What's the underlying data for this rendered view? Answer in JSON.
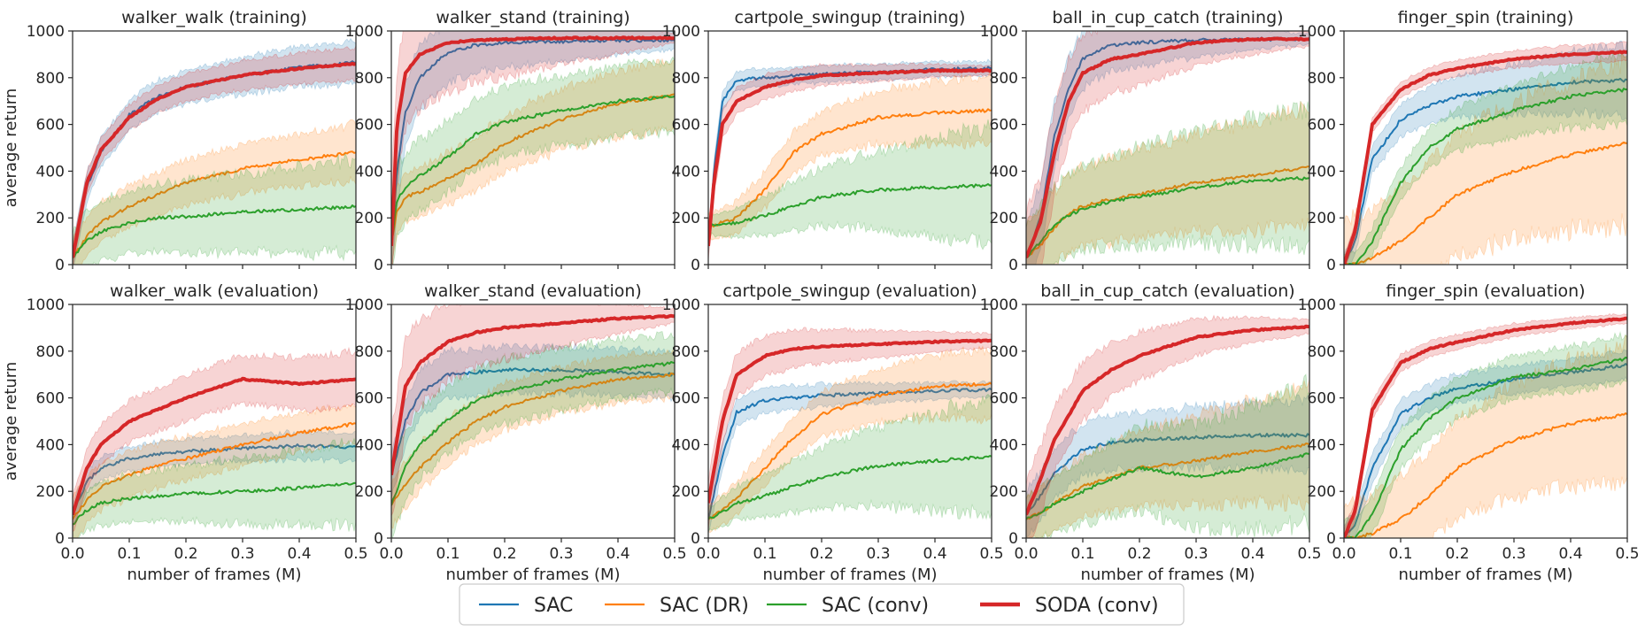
{
  "legend": {
    "placement": "bottom-center",
    "entries": [
      {
        "label": "SAC",
        "color": "#1f77b4"
      },
      {
        "label": "SAC (DR)",
        "color": "#ff7f0e"
      },
      {
        "label": "SAC (conv)",
        "color": "#2ca02c"
      },
      {
        "label": "SODA (conv)",
        "color": "#d62728"
      }
    ]
  },
  "chart_data": [
    {
      "type": "line",
      "title": "walker_walk (training)",
      "xlabel": "",
      "ylabel": "average return",
      "xlim": [
        0,
        0.5
      ],
      "ylim": [
        0,
        1000
      ],
      "x": [
        0,
        0.025,
        0.05,
        0.1,
        0.15,
        0.2,
        0.3,
        0.4,
        0.5
      ],
      "series": [
        {
          "name": "SAC",
          "values": [
            30,
            330,
            480,
            640,
            720,
            760,
            810,
            845,
            865
          ],
          "band": [
            60,
            90
          ]
        },
        {
          "name": "SAC (DR)",
          "values": [
            30,
            120,
            180,
            250,
            300,
            350,
            410,
            450,
            480
          ],
          "band": [
            80,
            120
          ]
        },
        {
          "name": "SAC (conv)",
          "values": [
            30,
            100,
            140,
            180,
            200,
            205,
            225,
            235,
            250
          ],
          "band": [
            120,
            200
          ]
        },
        {
          "name": "SODA (conv)",
          "values": [
            30,
            350,
            490,
            630,
            710,
            760,
            810,
            840,
            860
          ],
          "band": [
            50,
            70
          ]
        }
      ]
    },
    {
      "type": "line",
      "title": "walker_stand (training)",
      "xlabel": "",
      "ylabel": "",
      "xlim": [
        0,
        0.5
      ],
      "ylim": [
        0,
        1000
      ],
      "x": [
        0,
        0.01,
        0.025,
        0.05,
        0.1,
        0.15,
        0.2,
        0.3,
        0.4,
        0.5
      ],
      "series": [
        {
          "name": "SAC",
          "values": [
            80,
            400,
            650,
            800,
            910,
            940,
            950,
            955,
            960,
            960
          ],
          "band": [
            150,
            40
          ]
        },
        {
          "name": "SAC (DR)",
          "values": [
            80,
            230,
            290,
            310,
            370,
            430,
            520,
            620,
            690,
            730
          ],
          "band": [
            100,
            150
          ]
        },
        {
          "name": "SAC (conv)",
          "values": [
            80,
            280,
            330,
            380,
            460,
            560,
            610,
            660,
            700,
            720
          ],
          "band": [
            150,
            150
          ]
        },
        {
          "name": "SODA (conv)",
          "values": [
            80,
            600,
            820,
            900,
            950,
            960,
            965,
            970,
            970,
            970
          ],
          "band": [
            250,
            20
          ]
        }
      ]
    },
    {
      "type": "line",
      "title": "cartpole_swingup (training)",
      "xlabel": "",
      "ylabel": "",
      "xlim": [
        0,
        0.5
      ],
      "ylim": [
        0,
        1000
      ],
      "x": [
        0,
        0.01,
        0.025,
        0.05,
        0.1,
        0.15,
        0.2,
        0.3,
        0.4,
        0.5
      ],
      "series": [
        {
          "name": "SAC",
          "values": [
            80,
            400,
            700,
            790,
            800,
            810,
            815,
            825,
            835,
            840
          ],
          "band": [
            40,
            30
          ]
        },
        {
          "name": "SAC (DR)",
          "values": [
            160,
            170,
            180,
            200,
            320,
            480,
            560,
            630,
            650,
            660
          ],
          "band": [
            60,
            150
          ]
        },
        {
          "name": "SAC (conv)",
          "values": [
            160,
            170,
            170,
            180,
            210,
            250,
            290,
            320,
            330,
            340
          ],
          "band": [
            40,
            250
          ]
        },
        {
          "name": "SODA (conv)",
          "values": [
            80,
            350,
            600,
            700,
            760,
            790,
            810,
            820,
            830,
            830
          ],
          "band": [
            60,
            20
          ]
        }
      ]
    },
    {
      "type": "line",
      "title": "ball_in_cup_catch (training)",
      "xlabel": "",
      "ylabel": "",
      "xlim": [
        0,
        0.5
      ],
      "ylim": [
        0,
        1000
      ],
      "x": [
        0,
        0.025,
        0.05,
        0.075,
        0.1,
        0.15,
        0.2,
        0.3,
        0.4,
        0.5
      ],
      "series": [
        {
          "name": "SAC",
          "values": [
            30,
            200,
            550,
            750,
            880,
            940,
            950,
            960,
            965,
            965
          ],
          "band": [
            150,
            20
          ]
        },
        {
          "name": "SAC (DR)",
          "values": [
            30,
            80,
            160,
            220,
            250,
            280,
            300,
            350,
            380,
            420
          ],
          "band": [
            150,
            250
          ]
        },
        {
          "name": "SAC (conv)",
          "values": [
            30,
            100,
            170,
            210,
            240,
            270,
            290,
            330,
            360,
            370
          ],
          "band": [
            150,
            300
          ]
        },
        {
          "name": "SODA (conv)",
          "values": [
            30,
            180,
            480,
            700,
            820,
            880,
            900,
            950,
            965,
            965
          ],
          "band": [
            200,
            30
          ]
        }
      ]
    },
    {
      "type": "line",
      "title": "finger_spin (training)",
      "xlabel": "",
      "ylabel": "",
      "xlim": [
        0,
        0.5
      ],
      "ylim": [
        0,
        1000
      ],
      "x": [
        0,
        0.02,
        0.05,
        0.1,
        0.15,
        0.2,
        0.3,
        0.4,
        0.5
      ],
      "series": [
        {
          "name": "SAC",
          "values": [
            0,
            100,
            450,
            620,
            680,
            720,
            750,
            780,
            790
          ],
          "band": [
            50,
            150
          ]
        },
        {
          "name": "SAC (DR)",
          "values": [
            0,
            0,
            30,
            100,
            200,
            300,
            400,
            470,
            520
          ],
          "band": [
            200,
            350
          ]
        },
        {
          "name": "SAC (conv)",
          "values": [
            0,
            0,
            100,
            350,
            500,
            580,
            660,
            720,
            750
          ],
          "band": [
            50,
            150
          ]
        },
        {
          "name": "SODA (conv)",
          "values": [
            0,
            150,
            600,
            750,
            810,
            840,
            880,
            900,
            910
          ],
          "band": [
            30,
            40
          ]
        }
      ]
    },
    {
      "type": "line",
      "title": "walker_walk (evaluation)",
      "xlabel": "number of frames (M)",
      "ylabel": "average return",
      "xlim": [
        0,
        0.5
      ],
      "ylim": [
        0,
        1000
      ],
      "x": [
        0,
        0.025,
        0.05,
        0.1,
        0.15,
        0.2,
        0.3,
        0.4,
        0.5
      ],
      "series": [
        {
          "name": "SAC",
          "values": [
            100,
            240,
            300,
            340,
            360,
            370,
            385,
            395,
            390
          ],
          "band": [
            50,
            60
          ]
        },
        {
          "name": "SAC (DR)",
          "values": [
            80,
            160,
            220,
            270,
            310,
            340,
            400,
            450,
            490
          ],
          "band": [
            100,
            80
          ]
        },
        {
          "name": "SAC (conv)",
          "values": [
            60,
            120,
            150,
            170,
            180,
            190,
            200,
            215,
            235
          ],
          "band": [
            80,
            180
          ]
        },
        {
          "name": "SODA (conv)",
          "values": [
            100,
            300,
            400,
            500,
            550,
            600,
            680,
            660,
            680
          ],
          "band": [
            80,
            120
          ]
        }
      ]
    },
    {
      "type": "line",
      "title": "walker_stand (evaluation)",
      "xlabel": "number of frames (M)",
      "ylabel": "",
      "xlim": [
        0,
        0.5
      ],
      "ylim": [
        0,
        1000
      ],
      "x": [
        0,
        0.025,
        0.05,
        0.1,
        0.15,
        0.2,
        0.3,
        0.4,
        0.5
      ],
      "series": [
        {
          "name": "SAC",
          "values": [
            270,
            500,
            620,
            700,
            710,
            720,
            720,
            710,
            700
          ],
          "band": [
            100,
            100
          ]
        },
        {
          "name": "SAC (DR)",
          "values": [
            140,
            230,
            300,
            410,
            500,
            560,
            630,
            680,
            700
          ],
          "band": [
            100,
            100
          ]
        },
        {
          "name": "SAC (conv)",
          "values": [
            140,
            310,
            400,
            510,
            590,
            630,
            680,
            720,
            750
          ],
          "band": [
            150,
            120
          ]
        },
        {
          "name": "SODA (conv)",
          "values": [
            270,
            650,
            750,
            840,
            880,
            900,
            920,
            940,
            950
          ],
          "band": [
            200,
            30
          ]
        }
      ]
    },
    {
      "type": "line",
      "title": "cartpole_swingup (evaluation)",
      "xlabel": "number of frames (M)",
      "ylabel": "",
      "xlim": [
        0,
        0.5
      ],
      "ylim": [
        0,
        1000
      ],
      "x": [
        0,
        0.025,
        0.05,
        0.1,
        0.15,
        0.2,
        0.3,
        0.4,
        0.5
      ],
      "series": [
        {
          "name": "SAC",
          "values": [
            80,
            350,
            540,
            590,
            600,
            610,
            620,
            630,
            635
          ],
          "band": [
            60,
            30
          ]
        },
        {
          "name": "SAC (DR)",
          "values": [
            80,
            120,
            170,
            300,
            430,
            530,
            610,
            650,
            660
          ],
          "band": [
            60,
            150
          ]
        },
        {
          "name": "SAC (conv)",
          "values": [
            80,
            110,
            150,
            180,
            220,
            260,
            310,
            330,
            350
          ],
          "band": [
            50,
            250
          ]
        },
        {
          "name": "SODA (conv)",
          "values": [
            150,
            500,
            700,
            780,
            810,
            820,
            830,
            840,
            845
          ],
          "band": [
            100,
            30
          ]
        }
      ]
    },
    {
      "type": "line",
      "title": "ball_in_cup_catch (evaluation)",
      "xlabel": "number of frames (M)",
      "ylabel": "",
      "xlim": [
        0,
        0.5
      ],
      "ylim": [
        0,
        1000
      ],
      "x": [
        0,
        0.025,
        0.05,
        0.1,
        0.15,
        0.2,
        0.3,
        0.4,
        0.5
      ],
      "series": [
        {
          "name": "SAC",
          "values": [
            100,
            180,
            280,
            380,
            410,
            420,
            430,
            440,
            440
          ],
          "band": [
            100,
            150
          ]
        },
        {
          "name": "SAC (DR)",
          "values": [
            80,
            110,
            150,
            220,
            260,
            300,
            330,
            370,
            400
          ],
          "band": [
            100,
            250
          ]
        },
        {
          "name": "SAC (conv)",
          "values": [
            80,
            110,
            150,
            200,
            250,
            300,
            260,
            300,
            360
          ],
          "band": [
            100,
            300
          ]
        },
        {
          "name": "SODA (conv)",
          "values": [
            100,
            250,
            420,
            630,
            720,
            780,
            860,
            890,
            905
          ],
          "band": [
            150,
            30
          ]
        }
      ]
    },
    {
      "type": "line",
      "title": "finger_spin (evaluation)",
      "xlabel": "number of frames (M)",
      "ylabel": "",
      "xlim": [
        0,
        0.5
      ],
      "ylim": [
        0,
        1000
      ],
      "x": [
        0,
        0.02,
        0.05,
        0.1,
        0.15,
        0.2,
        0.3,
        0.4,
        0.5
      ],
      "series": [
        {
          "name": "SAC",
          "values": [
            0,
            60,
            300,
            530,
            600,
            640,
            680,
            710,
            740
          ],
          "band": [
            60,
            60
          ]
        },
        {
          "name": "SAC (DR)",
          "values": [
            0,
            0,
            20,
            80,
            180,
            300,
            420,
            490,
            530
          ],
          "band": [
            150,
            300
          ]
        },
        {
          "name": "SAC (conv)",
          "values": [
            0,
            0,
            100,
            380,
            510,
            600,
            690,
            720,
            770
          ],
          "band": [
            80,
            100
          ]
        },
        {
          "name": "SODA (conv)",
          "values": [
            0,
            120,
            550,
            750,
            810,
            840,
            890,
            920,
            940
          ],
          "band": [
            40,
            20
          ]
        }
      ]
    }
  ]
}
